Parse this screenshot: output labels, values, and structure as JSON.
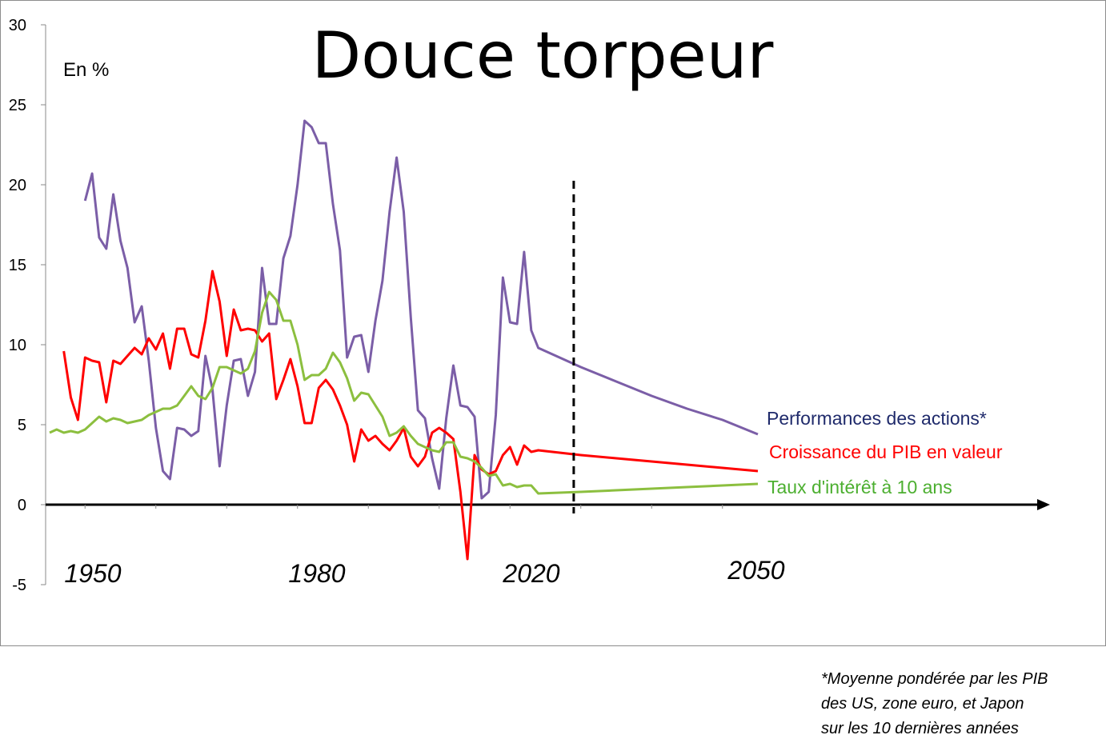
{
  "chart_data": {
    "type": "line",
    "title": "Douce torpeur",
    "unit_label": "En %",
    "x_tick_labels": [
      "1950",
      "1980",
      "2020",
      "2050"
    ],
    "xlim": [
      1945,
      2050
    ],
    "ylim": [
      -5,
      30
    ],
    "y_ticks": [
      -5,
      0,
      5,
      10,
      15,
      20,
      25,
      30
    ],
    "projection_start_year": 2019,
    "series": [
      {
        "name": "Performances des actions*",
        "color": "#7b5ea7",
        "label_color": "#1f2a6b",
        "points": [
          [
            1950,
            19.0
          ],
          [
            1951,
            20.7
          ],
          [
            1952,
            16.7
          ],
          [
            1953,
            16.0
          ],
          [
            1954,
            19.4
          ],
          [
            1955,
            16.5
          ],
          [
            1956,
            14.8
          ],
          [
            1957,
            11.4
          ],
          [
            1958,
            12.4
          ],
          [
            1959,
            9.0
          ],
          [
            1960,
            4.8
          ],
          [
            1961,
            2.1
          ],
          [
            1962,
            1.6
          ],
          [
            1963,
            4.8
          ],
          [
            1964,
            4.7
          ],
          [
            1965,
            4.3
          ],
          [
            1966,
            4.6
          ],
          [
            1967,
            9.3
          ],
          [
            1968,
            7.2
          ],
          [
            1969,
            2.4
          ],
          [
            1970,
            6.2
          ],
          [
            1971,
            9.0
          ],
          [
            1972,
            9.1
          ],
          [
            1973,
            6.8
          ],
          [
            1974,
            8.3
          ],
          [
            1975,
            14.8
          ],
          [
            1976,
            11.3
          ],
          [
            1977,
            11.3
          ],
          [
            1978,
            15.4
          ],
          [
            1979,
            16.8
          ],
          [
            1980,
            20.0
          ],
          [
            1981,
            24.0
          ],
          [
            1982,
            23.6
          ],
          [
            1983,
            22.6
          ],
          [
            1984,
            22.6
          ],
          [
            1985,
            18.8
          ],
          [
            1986,
            15.9
          ],
          [
            1987,
            9.2
          ],
          [
            1988,
            10.5
          ],
          [
            1989,
            10.6
          ],
          [
            1990,
            8.3
          ],
          [
            1991,
            11.5
          ],
          [
            1992,
            14.0
          ],
          [
            1993,
            18.3
          ],
          [
            1994,
            21.7
          ],
          [
            1995,
            18.3
          ],
          [
            1996,
            11.7
          ],
          [
            1997,
            5.9
          ],
          [
            1998,
            5.4
          ],
          [
            1999,
            2.9
          ],
          [
            2000,
            1.0
          ],
          [
            2001,
            5.4
          ],
          [
            2002,
            8.7
          ],
          [
            2003,
            6.2
          ],
          [
            2004,
            6.1
          ],
          [
            2005,
            5.5
          ],
          [
            2006,
            0.4
          ],
          [
            2007,
            0.8
          ],
          [
            2008,
            5.6
          ],
          [
            2009,
            14.2
          ],
          [
            2010,
            11.4
          ],
          [
            2011,
            11.3
          ],
          [
            2012,
            15.8
          ],
          [
            2013,
            10.9
          ],
          [
            2014,
            9.8
          ],
          [
            2020,
            8.6
          ],
          [
            2025,
            7.7
          ],
          [
            2030,
            6.8
          ],
          [
            2035,
            6.0
          ],
          [
            2040,
            5.3
          ],
          [
            2045,
            4.4
          ]
        ]
      },
      {
        "name": "Croissance du PIB en valeur",
        "color": "#ff0000",
        "label_color": "#ff0000",
        "points": [
          [
            1947,
            9.6
          ],
          [
            1948,
            6.7
          ],
          [
            1949,
            5.3
          ],
          [
            1950,
            9.2
          ],
          [
            1951,
            9.0
          ],
          [
            1952,
            8.9
          ],
          [
            1953,
            6.4
          ],
          [
            1954,
            9.0
          ],
          [
            1955,
            8.8
          ],
          [
            1956,
            9.3
          ],
          [
            1957,
            9.8
          ],
          [
            1958,
            9.4
          ],
          [
            1959,
            10.4
          ],
          [
            1960,
            9.7
          ],
          [
            1961,
            10.7
          ],
          [
            1962,
            8.5
          ],
          [
            1963,
            11.0
          ],
          [
            1964,
            11.0
          ],
          [
            1965,
            9.4
          ],
          [
            1966,
            9.2
          ],
          [
            1967,
            11.5
          ],
          [
            1968,
            14.6
          ],
          [
            1969,
            12.7
          ],
          [
            1970,
            9.3
          ],
          [
            1971,
            12.2
          ],
          [
            1972,
            10.9
          ],
          [
            1973,
            11.0
          ],
          [
            1974,
            10.9
          ],
          [
            1975,
            10.2
          ],
          [
            1976,
            10.7
          ],
          [
            1977,
            6.6
          ],
          [
            1978,
            7.8
          ],
          [
            1979,
            9.1
          ],
          [
            1980,
            7.4
          ],
          [
            1981,
            5.1
          ],
          [
            1982,
            5.1
          ],
          [
            1983,
            7.3
          ],
          [
            1984,
            7.8
          ],
          [
            1985,
            7.2
          ],
          [
            1986,
            6.2
          ],
          [
            1987,
            5.0
          ],
          [
            1988,
            2.7
          ],
          [
            1989,
            4.7
          ],
          [
            1990,
            4.0
          ],
          [
            1991,
            4.3
          ],
          [
            1992,
            3.8
          ],
          [
            1993,
            3.4
          ],
          [
            1994,
            4.0
          ],
          [
            1995,
            4.8
          ],
          [
            1996,
            3.0
          ],
          [
            1997,
            2.4
          ],
          [
            1998,
            3.0
          ],
          [
            1999,
            4.5
          ],
          [
            2000,
            4.8
          ],
          [
            2001,
            4.5
          ],
          [
            2002,
            4.1
          ],
          [
            2003,
            0.8
          ],
          [
            2004,
            -3.4
          ],
          [
            2005,
            3.1
          ],
          [
            2006,
            2.2
          ],
          [
            2007,
            1.9
          ],
          [
            2008,
            2.1
          ],
          [
            2009,
            3.1
          ],
          [
            2010,
            3.6
          ],
          [
            2011,
            2.5
          ],
          [
            2012,
            3.7
          ],
          [
            2013,
            3.3
          ],
          [
            2014,
            3.4
          ],
          [
            2020,
            3.1
          ],
          [
            2025,
            2.9
          ],
          [
            2030,
            2.7
          ],
          [
            2035,
            2.5
          ],
          [
            2040,
            2.3
          ],
          [
            2045,
            2.1
          ]
        ]
      },
      {
        "name": "Taux d'intérêt à 10 ans",
        "color": "#8cbf3f",
        "label_color": "#4caf30",
        "points": [
          [
            1945,
            4.5
          ],
          [
            1946,
            4.7
          ],
          [
            1947,
            4.5
          ],
          [
            1948,
            4.6
          ],
          [
            1949,
            4.5
          ],
          [
            1950,
            4.7
          ],
          [
            1951,
            5.1
          ],
          [
            1952,
            5.5
          ],
          [
            1953,
            5.2
          ],
          [
            1954,
            5.4
          ],
          [
            1955,
            5.3
          ],
          [
            1956,
            5.1
          ],
          [
            1957,
            5.2
          ],
          [
            1958,
            5.3
          ],
          [
            1959,
            5.6
          ],
          [
            1960,
            5.8
          ],
          [
            1961,
            6.0
          ],
          [
            1962,
            6.0
          ],
          [
            1963,
            6.2
          ],
          [
            1964,
            6.8
          ],
          [
            1965,
            7.4
          ],
          [
            1966,
            6.8
          ],
          [
            1967,
            6.6
          ],
          [
            1968,
            7.3
          ],
          [
            1969,
            8.6
          ],
          [
            1970,
            8.6
          ],
          [
            1971,
            8.4
          ],
          [
            1972,
            8.2
          ],
          [
            1973,
            8.5
          ],
          [
            1974,
            9.6
          ],
          [
            1975,
            12.0
          ],
          [
            1976,
            13.3
          ],
          [
            1977,
            12.8
          ],
          [
            1978,
            11.5
          ],
          [
            1979,
            11.5
          ],
          [
            1980,
            10.0
          ],
          [
            1981,
            7.8
          ],
          [
            1982,
            8.1
          ],
          [
            1983,
            8.1
          ],
          [
            1984,
            8.5
          ],
          [
            1985,
            9.5
          ],
          [
            1986,
            8.9
          ],
          [
            1987,
            7.9
          ],
          [
            1988,
            6.5
          ],
          [
            1989,
            7.0
          ],
          [
            1990,
            6.9
          ],
          [
            1991,
            6.2
          ],
          [
            1992,
            5.5
          ],
          [
            1993,
            4.3
          ],
          [
            1994,
            4.5
          ],
          [
            1995,
            4.9
          ],
          [
            1996,
            4.3
          ],
          [
            1997,
            3.8
          ],
          [
            1998,
            3.6
          ],
          [
            1999,
            3.4
          ],
          [
            2000,
            3.3
          ],
          [
            2001,
            3.9
          ],
          [
            2002,
            3.9
          ],
          [
            2003,
            3.0
          ],
          [
            2004,
            2.9
          ],
          [
            2005,
            2.7
          ],
          [
            2006,
            2.3
          ],
          [
            2007,
            1.8
          ],
          [
            2008,
            1.9
          ],
          [
            2009,
            1.2
          ],
          [
            2010,
            1.3
          ],
          [
            2011,
            1.1
          ],
          [
            2012,
            1.2
          ],
          [
            2013,
            1.2
          ],
          [
            2014,
            0.7
          ],
          [
            2020,
            0.8
          ],
          [
            2025,
            0.9
          ],
          [
            2030,
            1.0
          ],
          [
            2035,
            1.1
          ],
          [
            2040,
            1.2
          ],
          [
            2045,
            1.3
          ]
        ]
      }
    ]
  },
  "footnote": [
    "*Moyenne pondérée par les PIB",
    "des US, zone euro, et Japon",
    "sur les 10 dernières années"
  ]
}
